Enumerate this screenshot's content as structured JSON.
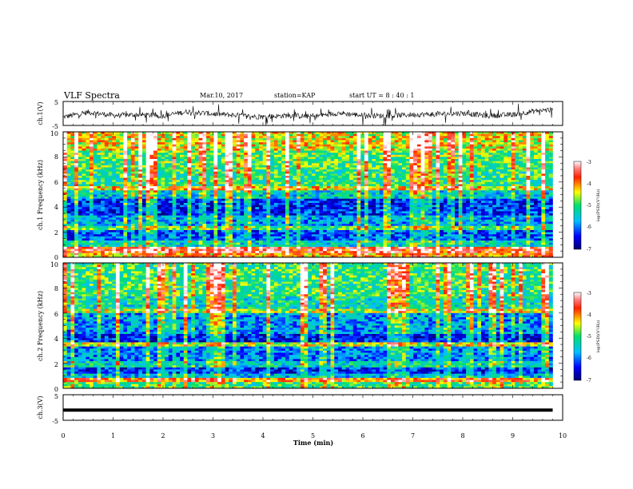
{
  "header": {
    "title": "VLF Spectra",
    "date": "Mar.10, 2017",
    "station": "station=KAP",
    "start": "start  UT  =   8 : 40 : 1"
  },
  "chart_data": [
    {
      "type": "line",
      "panel": "ch1-waveform",
      "ylabel": "ch.1(V)",
      "ylim": [
        -5,
        5
      ],
      "yticks": [
        "5",
        "-5"
      ],
      "xlim": [
        0,
        10
      ],
      "x_end": 9.8,
      "x": [
        0,
        0.5,
        1,
        1.5,
        2,
        2.5,
        3,
        3.5,
        4,
        4.5,
        5,
        5.5,
        6,
        6.5,
        7,
        7.5,
        8,
        8.5,
        9,
        9.5,
        9.8
      ],
      "values": [
        -1.5,
        0.5,
        -0.8,
        -0.5,
        -1.0,
        0.8,
        -0.2,
        -0.8,
        -1.5,
        -0.8,
        -1.3,
        0.2,
        -0.8,
        -1.0,
        -0.5,
        -0.3,
        0.1,
        -1.0,
        -0.5,
        1.2,
        1.5
      ]
    },
    {
      "type": "heatmap",
      "panel": "ch1-spectrogram",
      "ylabel": "ch.1 Frequency (kHz)",
      "ylim": [
        0,
        10
      ],
      "yticks": [
        "0",
        "2",
        "4",
        "6",
        "8",
        "10"
      ],
      "xlim": [
        0,
        10
      ],
      "x_end": 9.8,
      "colorbar": {
        "label": "log(PSD)(V²/Hz)",
        "range": [
          -7,
          -3
        ],
        "ticks": [
          "-3",
          "-4",
          "-5",
          "-6",
          "-7"
        ]
      },
      "bands": [
        {
          "from": 0.0,
          "to": 0.4,
          "level": -4.2
        },
        {
          "from": 0.4,
          "to": 0.9,
          "level": -3.6
        },
        {
          "from": 0.9,
          "to": 1.3,
          "level": -5.4
        },
        {
          "from": 1.3,
          "to": 2.1,
          "level": -6.1
        },
        {
          "from": 2.1,
          "to": 2.5,
          "level": -5.0
        },
        {
          "from": 2.5,
          "to": 3.4,
          "level": -5.8
        },
        {
          "from": 3.4,
          "to": 4.6,
          "level": -6.3
        },
        {
          "from": 4.6,
          "to": 5.4,
          "level": -5.5
        },
        {
          "from": 5.4,
          "to": 5.6,
          "level": -4.3
        },
        {
          "from": 5.6,
          "to": 7.0,
          "level": -5.1
        },
        {
          "from": 7.0,
          "to": 8.5,
          "level": -4.9
        },
        {
          "from": 8.5,
          "to": 10.0,
          "level": -4.4
        }
      ]
    },
    {
      "type": "heatmap",
      "panel": "ch2-spectrogram",
      "ylabel": "ch.2 Frequency (kHz)",
      "ylim": [
        0,
        10
      ],
      "yticks": [
        "0",
        "2",
        "4",
        "6",
        "8",
        "10"
      ],
      "xlim": [
        0,
        10
      ],
      "x_end": 9.8,
      "colorbar": {
        "label": "log(PSD)(V²/Hz)",
        "range": [
          -7,
          -3
        ],
        "ticks": [
          "-3",
          "-4",
          "-5",
          "-6",
          "-7"
        ]
      },
      "bands": [
        {
          "from": 0.0,
          "to": 0.5,
          "level": -5.0
        },
        {
          "from": 0.5,
          "to": 0.8,
          "level": -4.0
        },
        {
          "from": 0.8,
          "to": 1.2,
          "level": -5.6
        },
        {
          "from": 1.2,
          "to": 1.6,
          "level": -6.3
        },
        {
          "from": 1.6,
          "to": 2.2,
          "level": -5.4
        },
        {
          "from": 2.2,
          "to": 3.3,
          "level": -5.9
        },
        {
          "from": 3.3,
          "to": 3.6,
          "level": -4.6
        },
        {
          "from": 3.6,
          "to": 4.4,
          "level": -6.4
        },
        {
          "from": 4.4,
          "to": 6.0,
          "level": -5.8
        },
        {
          "from": 6.0,
          "to": 6.4,
          "level": -4.6
        },
        {
          "from": 6.4,
          "to": 7.4,
          "level": -5.3
        },
        {
          "from": 7.4,
          "to": 10.0,
          "level": -5.0
        }
      ]
    },
    {
      "type": "line",
      "panel": "ch3-waveform",
      "ylabel": "ch.3(V)",
      "ylim": [
        -5,
        5
      ],
      "yticks": [
        "5",
        "-5"
      ],
      "xlim": [
        0,
        10
      ],
      "x_end": 9.8,
      "x": [
        0,
        9.8
      ],
      "values": [
        -1.0,
        -1.0
      ],
      "xlabel": "Time  (min)",
      "xticks": [
        "0",
        "1",
        "2",
        "3",
        "4",
        "5",
        "6",
        "7",
        "8",
        "9",
        "10"
      ]
    }
  ]
}
